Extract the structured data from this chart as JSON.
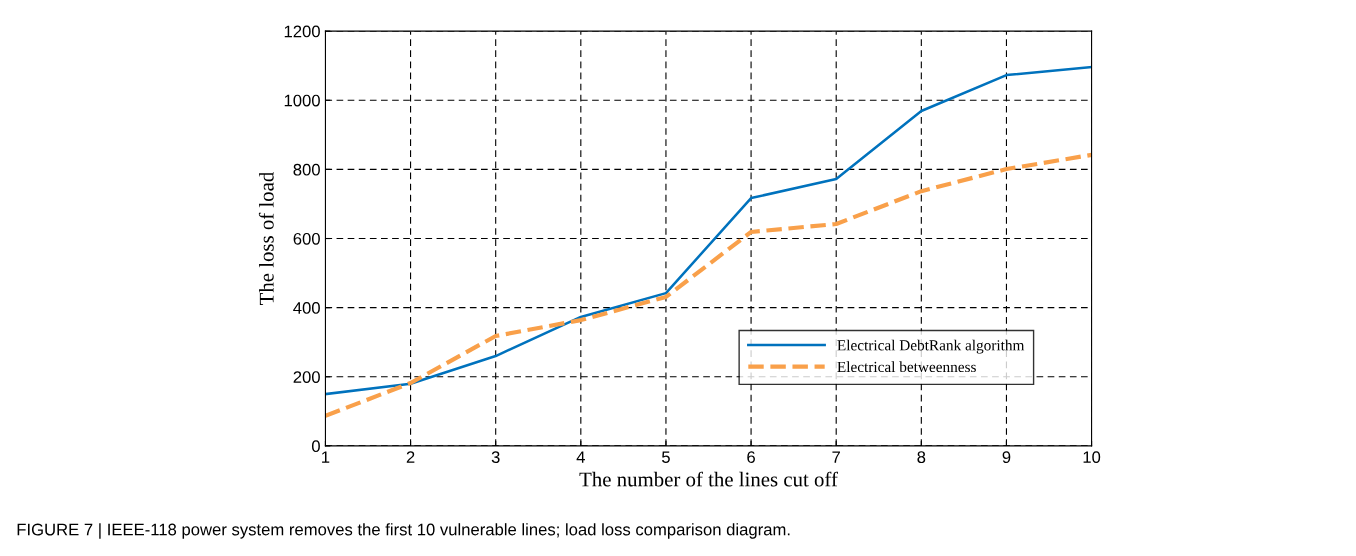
{
  "chart_data": {
    "type": "line",
    "xlabel": "The number of the lines cut off",
    "ylabel": "The loss of load",
    "x": [
      1,
      2,
      3,
      4,
      5,
      6,
      7,
      8,
      9,
      10
    ],
    "series": [
      {
        "name": "Electrical DebtRank algorithm",
        "color": "#0072bd",
        "line_style": "solid",
        "values": [
          150,
          180,
          260,
          373,
          442,
          717,
          772,
          969,
          1073,
          1096
        ]
      },
      {
        "name": "Electrical betweenness",
        "color": "#f9a04a",
        "line_style": "dashed",
        "values": [
          87,
          182,
          318,
          364,
          431,
          619,
          642,
          737,
          801,
          842
        ]
      }
    ],
    "xlim": [
      1,
      10
    ],
    "xticks": [
      1,
      2,
      3,
      4,
      5,
      6,
      7,
      8,
      9,
      10
    ],
    "ylim": [
      0,
      1200
    ],
    "yticks": [
      0,
      200,
      400,
      600,
      800,
      1000,
      1200
    ],
    "grid": true,
    "legend": "bottom right",
    "annotations": [
      "FIGURE 7 | IEEE-118 power system removes the first 10 vulnerable lines; load loss comparison diagram."
    ]
  }
}
